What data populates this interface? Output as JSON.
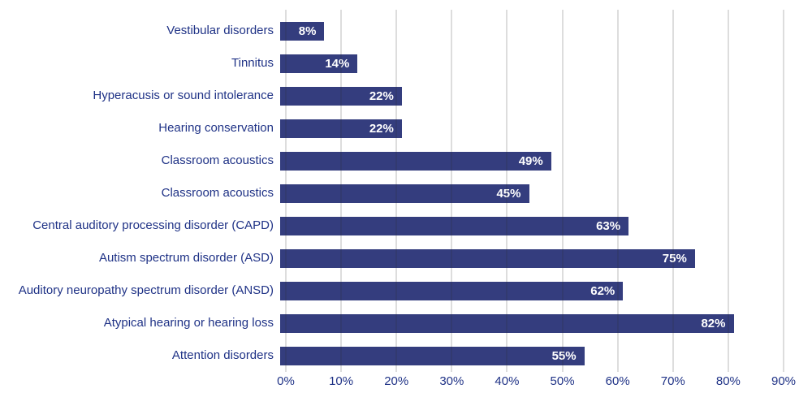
{
  "page": {
    "background_color": "#FFFFFF"
  },
  "chart_data": {
    "type": "bar",
    "orientation": "horizontal",
    "title": "",
    "xlabel": "",
    "ylabel": "",
    "categories": [
      "Vestibular disorders",
      "Tinnitus",
      "Hyperacusis or sound intolerance",
      "Hearing conservation",
      "Classroom acoustics",
      "Classroom acoustics",
      "Central auditory processing disorder (CAPD)",
      "Autism spectrum disorder (ASD)",
      "Auditory neuropathy spectrum disorder (ANSD)",
      "Atypical hearing or hearing loss",
      "Attention disorders"
    ],
    "values": [
      8,
      14,
      22,
      22,
      49,
      45,
      63,
      75,
      62,
      82,
      55
    ],
    "value_labels": [
      "8%",
      "14%",
      "22%",
      "22%",
      "49%",
      "45%",
      "63%",
      "75%",
      "62%",
      "82%",
      "55%"
    ],
    "xlim": [
      0,
      90
    ],
    "x_tick_values": [
      0,
      10,
      20,
      30,
      40,
      50,
      60,
      70,
      80,
      90
    ],
    "x_tick_labels": [
      "0%",
      "10%",
      "20%",
      "30%",
      "40%",
      "50%",
      "60%",
      "70%",
      "80%",
      "90%"
    ],
    "grid": "vertical",
    "legend": "none",
    "colors": {
      "bar": "#343D7E",
      "category_text": "#1F3286",
      "tick_text": "#1F3286",
      "value_text": "#FFFFFF",
      "gridline": "#D9D9D9"
    }
  }
}
